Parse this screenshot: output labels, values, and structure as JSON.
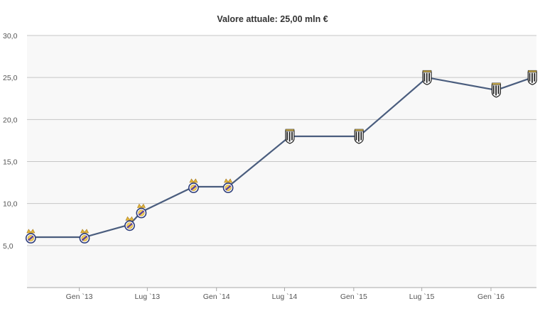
{
  "header": {
    "title": "Valore attuale: 25,00 mln €"
  },
  "chart_data": {
    "type": "line",
    "title": "Valore attuale: 25,00 mln €",
    "xlabel": "",
    "ylabel": "",
    "ylim": [
      0,
      30
    ],
    "y_ticks": [
      "5,0",
      "10,0",
      "15,0",
      "20,0",
      "25,0",
      "30,0"
    ],
    "y_tick_values": [
      5,
      10,
      15,
      20,
      25,
      30
    ],
    "x_ticks": [
      "Gen `13",
      "Lug `13",
      "Gen `14",
      "Lug `14",
      "Gen `15",
      "Lug `15",
      "Gen `16"
    ],
    "x_tick_dates": [
      "2013-01-01",
      "2013-07-01",
      "2014-01-01",
      "2014-07-01",
      "2015-01-01",
      "2015-07-01",
      "2016-01-01"
    ],
    "x_range": [
      "2012-08-15",
      "2016-05-01"
    ],
    "grid": true,
    "line_color": "#4a5d7e",
    "series": [
      {
        "points": [
          {
            "x": "2012-08-25",
            "y": 6.0,
            "club": "real-madrid"
          },
          {
            "x": "2013-01-15",
            "y": 6.0,
            "club": "real-madrid"
          },
          {
            "x": "2013-05-15",
            "y": 7.5,
            "club": "real-madrid"
          },
          {
            "x": "2013-06-15",
            "y": 9.0,
            "club": "real-madrid"
          },
          {
            "x": "2013-11-01",
            "y": 12.0,
            "club": "real-madrid"
          },
          {
            "x": "2014-02-01",
            "y": 12.0,
            "club": "real-madrid"
          },
          {
            "x": "2014-07-15",
            "y": 18.0,
            "club": "juventus"
          },
          {
            "x": "2015-01-15",
            "y": 18.0,
            "club": "juventus"
          },
          {
            "x": "2015-07-15",
            "y": 25.0,
            "club": "juventus"
          },
          {
            "x": "2016-01-15",
            "y": 23.5,
            "club": "juventus"
          },
          {
            "x": "2016-04-20",
            "y": 25.0,
            "club": "juventus"
          }
        ]
      }
    ]
  }
}
